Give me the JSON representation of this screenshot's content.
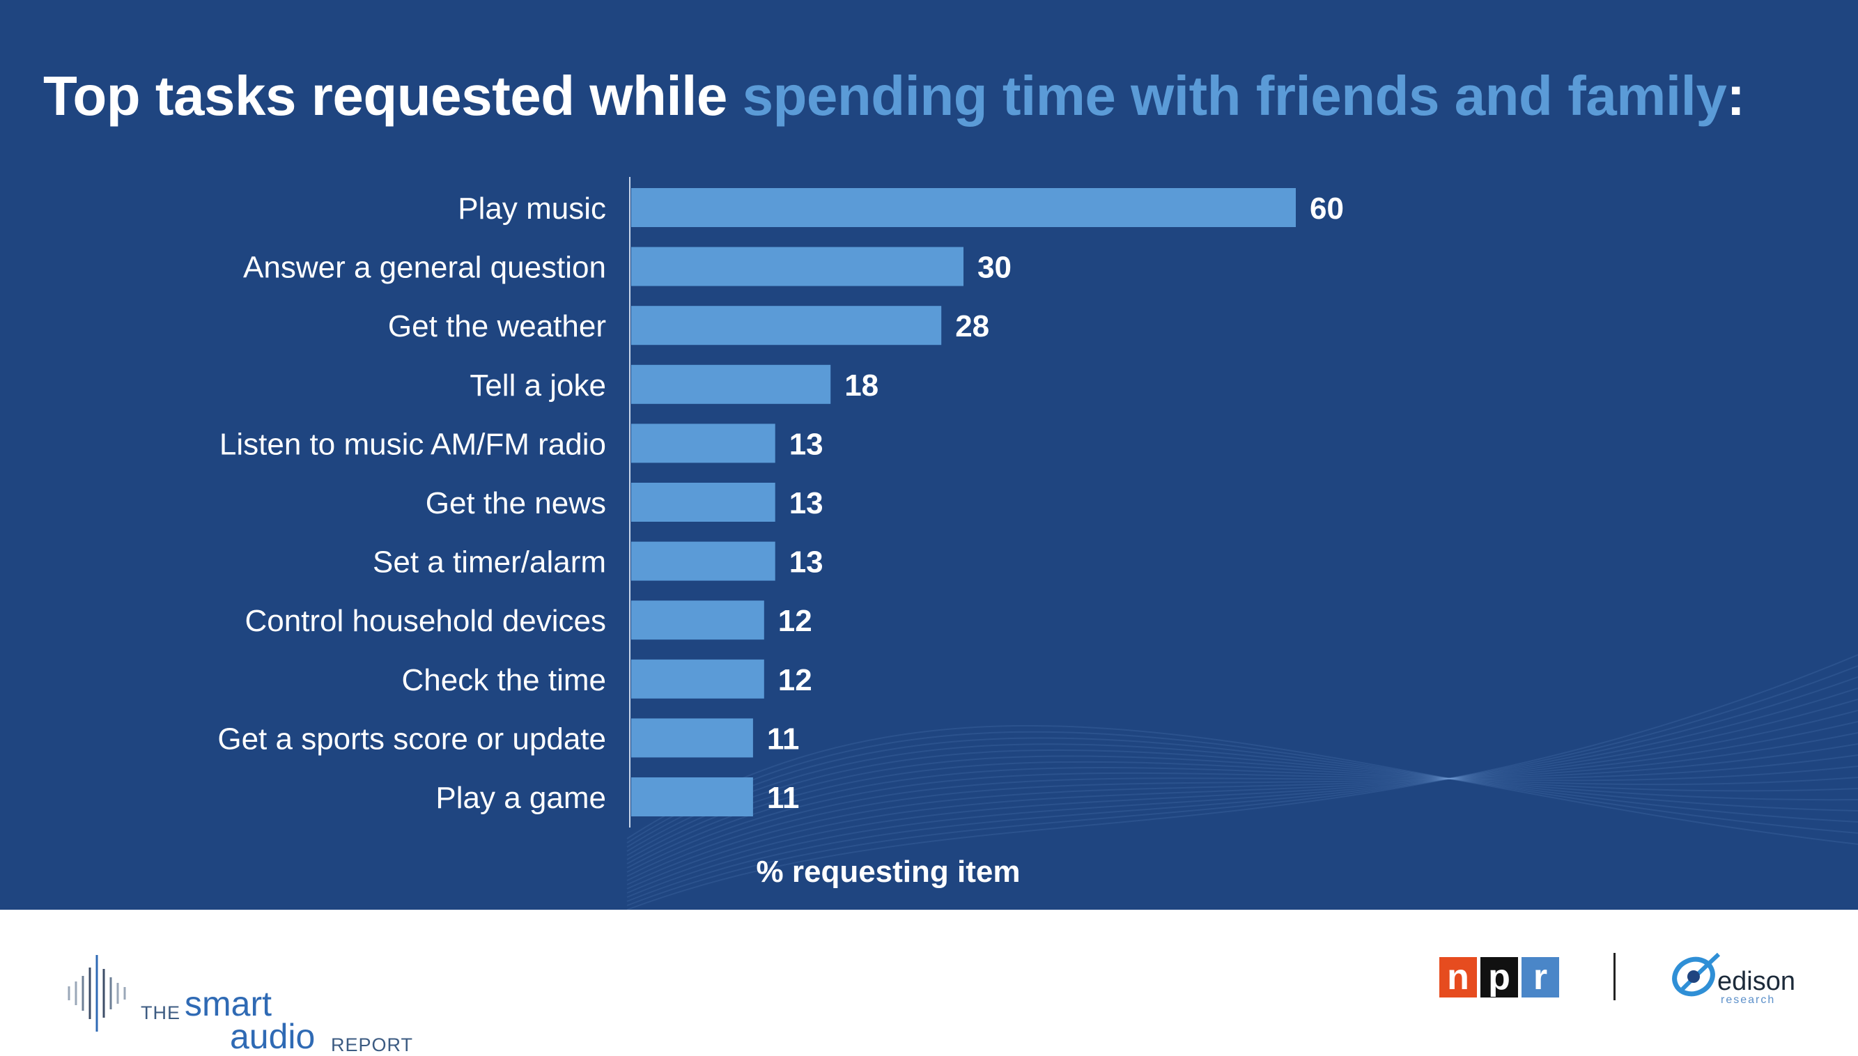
{
  "chart_data": {
    "type": "bar",
    "orientation": "horizontal",
    "title_plain": "Top tasks requested while ",
    "title_highlight": "spending time with friends and family",
    "title_end": ":",
    "categories": [
      "Play music",
      "Answer a general question",
      "Get the weather",
      "Tell a joke",
      "Listen to music AM/FM radio",
      "Get the news",
      "Set a timer/alarm",
      "Control household devices",
      "Check the time",
      "Get a sports score or update",
      "Play a game"
    ],
    "values": [
      60,
      30,
      28,
      18,
      13,
      13,
      13,
      12,
      12,
      11,
      11
    ],
    "xlabel": "% requesting item",
    "ylabel": "",
    "xlim": [
      0,
      100
    ],
    "grid": false,
    "legend": "none",
    "data_labels": true
  },
  "colors": {
    "background": "#1f4580",
    "bar": "#5b9bd7",
    "title_highlight": "#5b9bd7",
    "text": "#ffffff"
  },
  "footer": {
    "report_the": "THE",
    "report_smart": "smart",
    "report_audio": "audio",
    "report_word": "REPORT",
    "npr_letters": [
      "n",
      "p",
      "r"
    ],
    "edison_name": "edison",
    "edison_sub": "research"
  }
}
